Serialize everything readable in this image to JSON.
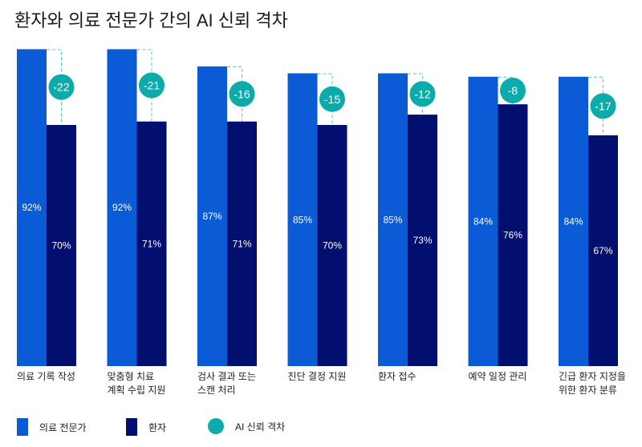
{
  "chart_data": {
    "type": "bar",
    "title": "환자와 의료 전문가 간의 AI 신뢰 격차",
    "categories": [
      [
        "의료 기록 작성"
      ],
      [
        "맞춤형 치료",
        "계획 수립 지원"
      ],
      [
        "검사 결과 또는",
        "스캔 처리"
      ],
      [
        "진단 결정 지원"
      ],
      [
        "환자 접수"
      ],
      [
        "예약 일정 관리"
      ],
      [
        "긴급 환자 지정을",
        "위한 환자 분류"
      ]
    ],
    "series": [
      {
        "name": "의료 전문가",
        "color": "#0b5bd7",
        "values": [
          92,
          92,
          87,
          85,
          85,
          84,
          84
        ]
      },
      {
        "name": "환자",
        "color": "#020f6e",
        "values": [
          70,
          71,
          71,
          70,
          73,
          76,
          67
        ]
      }
    ],
    "gap": {
      "name": "AI 신뢰 격차",
      "color": "#0aabaa",
      "values": [
        -22,
        -21,
        -16,
        -15,
        -12,
        -8,
        -17
      ]
    },
    "ylim": [
      0,
      100
    ],
    "value_suffix": "%",
    "legend": "bottom-left",
    "grid": false
  }
}
